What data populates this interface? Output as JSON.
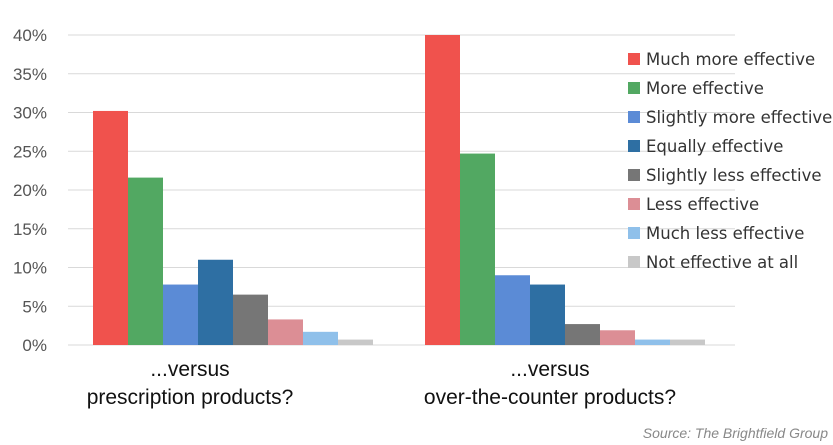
{
  "chart_data": {
    "type": "bar",
    "categories": [
      [
        "...versus",
        "prescription products?"
      ],
      [
        "...versus",
        "over-the-counter products?"
      ]
    ],
    "series": [
      {
        "name": "Much more effective",
        "color": "#F0524D",
        "values": [
          30.2,
          40.0
        ]
      },
      {
        "name": "More effective",
        "color": "#52A862",
        "values": [
          21.6,
          24.7
        ]
      },
      {
        "name": "Slightly more effective",
        "color": "#5B8BD6",
        "values": [
          7.8,
          9.0
        ]
      },
      {
        "name": "Equally effective",
        "color": "#2E6FA3",
        "values": [
          11.0,
          7.8
        ]
      },
      {
        "name": "Slightly less effective",
        "color": "#767676",
        "values": [
          6.5,
          2.7
        ]
      },
      {
        "name": "Less effective",
        "color": "#DC8E95",
        "values": [
          3.3,
          1.9
        ]
      },
      {
        "name": "Much less effective",
        "color": "#8FC0EA",
        "values": [
          1.7,
          0.7
        ]
      },
      {
        "name": "Not effective at all",
        "color": "#C8C8C8",
        "values": [
          0.7,
          0.7
        ]
      }
    ],
    "yticks": [
      "0%",
      "5%",
      "10%",
      "15%",
      "20%",
      "25%",
      "30%",
      "35%",
      "40%"
    ],
    "ylim": [
      0,
      40
    ],
    "grid": true,
    "legend": "right",
    "xlabel": "",
    "ylabel": ""
  },
  "source": "Source: The Brightfield Group"
}
